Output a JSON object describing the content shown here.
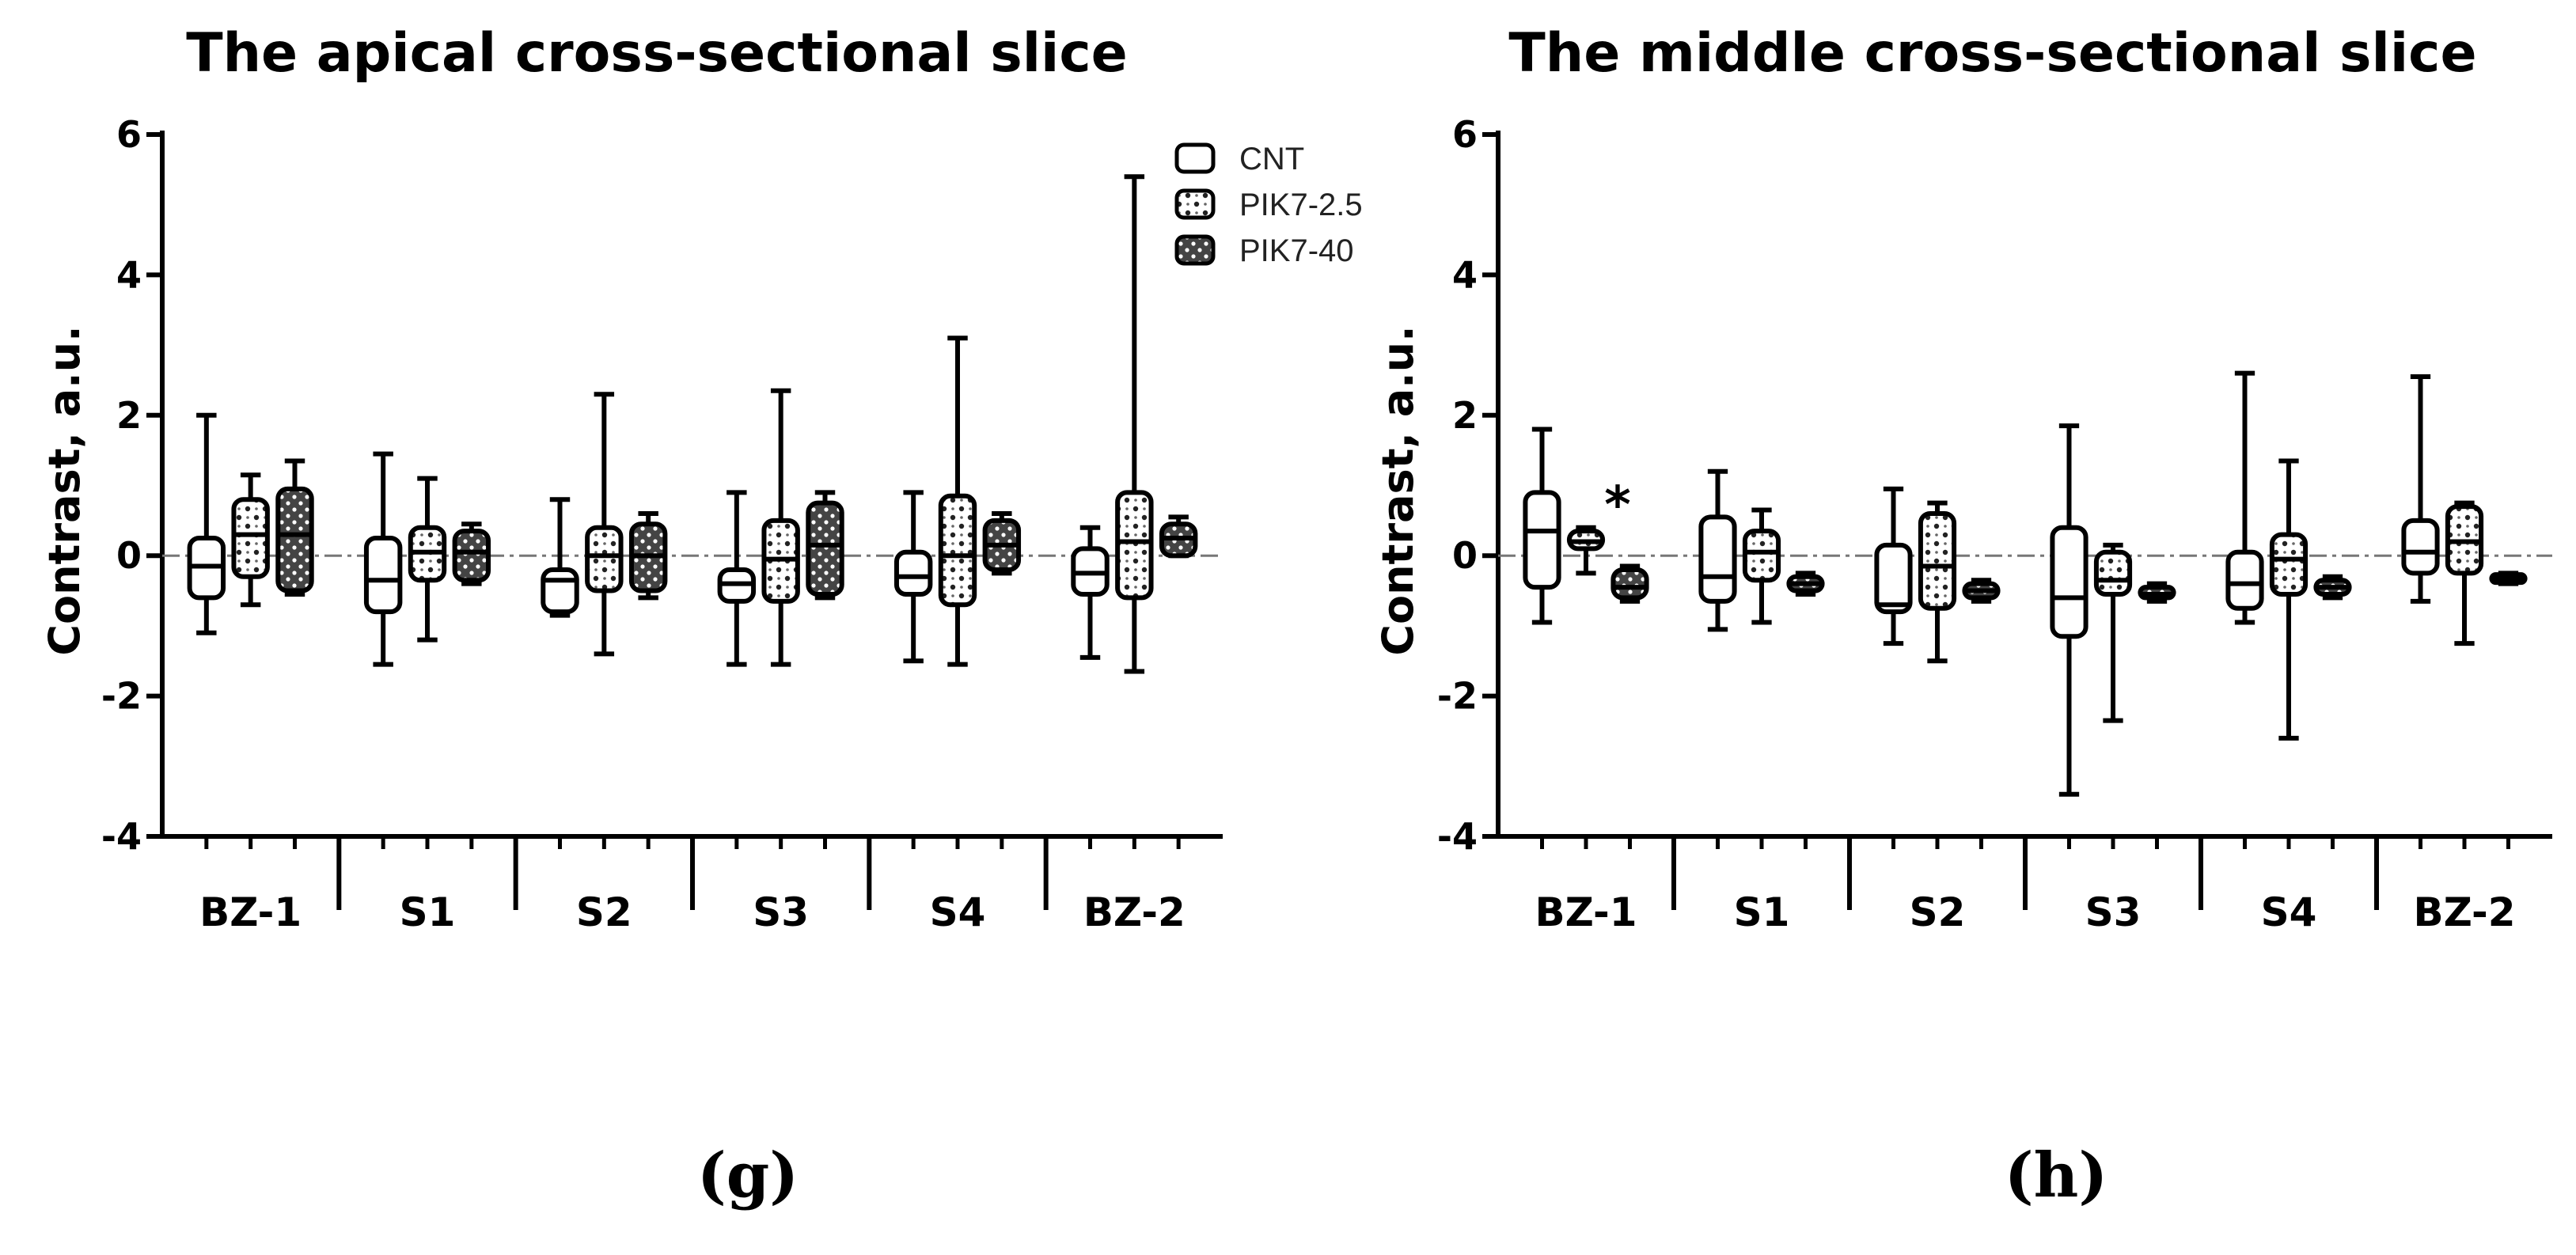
{
  "chart_data": [
    {
      "type": "box",
      "title": "The apical cross-sectional slice",
      "ylabel": "Contrast, a.u.",
      "xlabel": "",
      "ylim": [
        -4,
        6
      ],
      "yticks": [
        "-4",
        "-2",
        "0",
        "2",
        "4",
        "6"
      ],
      "categories": [
        "BZ-1",
        "S1",
        "S2",
        "S3",
        "S4",
        "BZ-2"
      ],
      "legend": {
        "position": "top-right",
        "entries": [
          "CNT",
          "PIK7-2.5",
          "PIK7-40"
        ]
      },
      "panel_label": "(g)",
      "annotations": [],
      "series": [
        {
          "name": "CNT",
          "boxes": [
            {
              "min": -1.1,
              "q1": -0.6,
              "median": -0.15,
              "q3": 0.25,
              "max": 2.0
            },
            {
              "min": -1.55,
              "q1": -0.8,
              "median": -0.35,
              "q3": 0.25,
              "max": 1.45
            },
            {
              "min": -0.85,
              "q1": -0.8,
              "median": -0.35,
              "q3": -0.2,
              "max": 0.8
            },
            {
              "min": -1.55,
              "q1": -0.65,
              "median": -0.4,
              "q3": -0.2,
              "max": 0.9
            },
            {
              "min": -1.5,
              "q1": -0.55,
              "median": -0.3,
              "q3": 0.05,
              "max": 0.9
            },
            {
              "min": -1.45,
              "q1": -0.55,
              "median": -0.25,
              "q3": 0.1,
              "max": 0.4
            }
          ]
        },
        {
          "name": "PIK7-2.5",
          "boxes": [
            {
              "min": -0.7,
              "q1": -0.3,
              "median": 0.3,
              "q3": 0.8,
              "max": 1.15
            },
            {
              "min": -1.2,
              "q1": -0.35,
              "median": 0.05,
              "q3": 0.4,
              "max": 1.1
            },
            {
              "min": -1.4,
              "q1": -0.5,
              "median": 0.0,
              "q3": 0.4,
              "max": 2.3
            },
            {
              "min": -1.55,
              "q1": -0.65,
              "median": -0.05,
              "q3": 0.5,
              "max": 2.35
            },
            {
              "min": -1.55,
              "q1": -0.7,
              "median": 0.0,
              "q3": 0.85,
              "max": 3.1
            },
            {
              "min": -1.65,
              "q1": -0.6,
              "median": 0.2,
              "q3": 0.9,
              "max": 5.4
            }
          ]
        },
        {
          "name": "PIK7-40",
          "boxes": [
            {
              "min": -0.55,
              "q1": -0.5,
              "median": 0.3,
              "q3": 0.95,
              "max": 1.35
            },
            {
              "min": -0.4,
              "q1": -0.35,
              "median": 0.05,
              "q3": 0.35,
              "max": 0.45
            },
            {
              "min": -0.6,
              "q1": -0.5,
              "median": 0.0,
              "q3": 0.45,
              "max": 0.6
            },
            {
              "min": -0.6,
              "q1": -0.55,
              "median": 0.15,
              "q3": 0.75,
              "max": 0.9
            },
            {
              "min": -0.25,
              "q1": -0.2,
              "median": 0.15,
              "q3": 0.5,
              "max": 0.6
            },
            {
              "min": 0.0,
              "q1": 0.0,
              "median": 0.25,
              "q3": 0.45,
              "max": 0.55
            }
          ]
        }
      ]
    },
    {
      "type": "box",
      "title": "The middle cross-sectional slice",
      "ylabel": "Contrast, a.u.",
      "xlabel": "",
      "ylim": [
        -4,
        6
      ],
      "yticks": [
        "-4",
        "-2",
        "0",
        "2",
        "4",
        "6"
      ],
      "categories": [
        "BZ-1",
        "S1",
        "S2",
        "S3",
        "S4",
        "BZ-2"
      ],
      "legend": null,
      "panel_label": "(h)",
      "annotations": [
        {
          "text": "*",
          "category": "BZ-1",
          "series": "PIK7-40"
        }
      ],
      "series": [
        {
          "name": "CNT",
          "boxes": [
            {
              "min": -0.95,
              "q1": -0.45,
              "median": 0.35,
              "q3": 0.9,
              "max": 1.8
            },
            {
              "min": -1.05,
              "q1": -0.65,
              "median": -0.3,
              "q3": 0.55,
              "max": 1.2
            },
            {
              "min": -1.25,
              "q1": -0.8,
              "median": -0.7,
              "q3": 0.15,
              "max": 0.95
            },
            {
              "min": -3.4,
              "q1": -1.15,
              "median": -0.6,
              "q3": 0.4,
              "max": 1.85
            },
            {
              "min": -0.95,
              "q1": -0.75,
              "median": -0.4,
              "q3": 0.05,
              "max": 2.6
            },
            {
              "min": -0.65,
              "q1": -0.25,
              "median": 0.05,
              "q3": 0.5,
              "max": 2.55
            }
          ]
        },
        {
          "name": "PIK7-2.5",
          "boxes": [
            {
              "min": -0.25,
              "q1": 0.1,
              "median": 0.2,
              "q3": 0.35,
              "max": 0.4
            },
            {
              "min": -0.95,
              "q1": -0.35,
              "median": 0.05,
              "q3": 0.35,
              "max": 0.65
            },
            {
              "min": -1.5,
              "q1": -0.75,
              "median": -0.15,
              "q3": 0.6,
              "max": 0.75
            },
            {
              "min": -2.35,
              "q1": -0.55,
              "median": -0.35,
              "q3": 0.05,
              "max": 0.15
            },
            {
              "min": -2.6,
              "q1": -0.55,
              "median": -0.05,
              "q3": 0.3,
              "max": 1.35
            },
            {
              "min": -1.25,
              "q1": -0.25,
              "median": 0.2,
              "q3": 0.7,
              "max": 0.75
            }
          ]
        },
        {
          "name": "PIK7-40",
          "boxes": [
            {
              "min": -0.65,
              "q1": -0.6,
              "median": -0.45,
              "q3": -0.2,
              "max": -0.15
            },
            {
              "min": -0.55,
              "q1": -0.5,
              "median": -0.4,
              "q3": -0.3,
              "max": -0.25
            },
            {
              "min": -0.65,
              "q1": -0.6,
              "median": -0.5,
              "q3": -0.4,
              "max": -0.35
            },
            {
              "min": -0.65,
              "q1": -0.6,
              "median": -0.55,
              "q3": -0.45,
              "max": -0.4
            },
            {
              "min": -0.6,
              "q1": -0.55,
              "median": -0.45,
              "q3": -0.35,
              "max": -0.3
            },
            {
              "min": -0.4,
              "q1": -0.38,
              "median": -0.32,
              "q3": -0.27,
              "max": -0.25
            }
          ]
        }
      ]
    }
  ]
}
